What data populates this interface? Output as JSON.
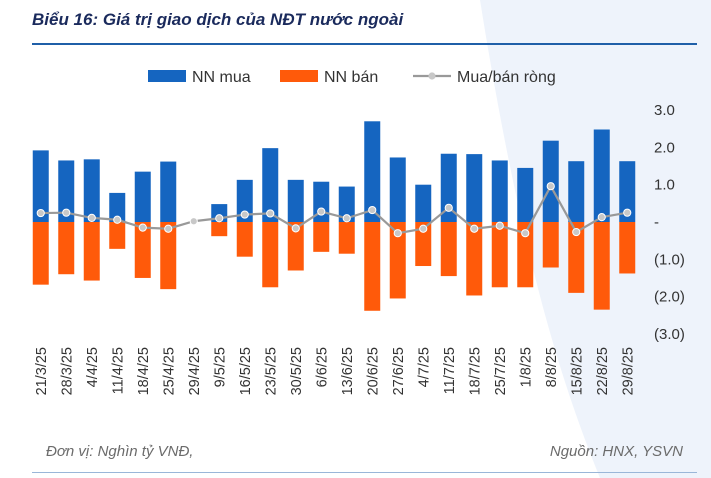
{
  "title": "Biểu 16: Giá trị giao dịch của NĐT nước ngoài",
  "footer": {
    "unit": "Đơn vị: Nghìn tỷ VNĐ,",
    "source": "Nguồn: HNX, YSVN"
  },
  "colors": {
    "buy": "#1565c0",
    "sell": "#ff5a0a",
    "net_line": "#999999",
    "net_marker": "#c8c8c8",
    "title": "#1a2a5c"
  },
  "chart_data": {
    "type": "bar",
    "title": "Biểu 16: Giá trị giao dịch của NĐT nước ngoài",
    "xlabel": "",
    "ylabel": "",
    "ylim": [
      -3.0,
      3.0
    ],
    "yticks": [
      3.0,
      2.0,
      1.0,
      0,
      -1.0,
      -2.0,
      -3.0
    ],
    "ytick_labels": [
      "3.0",
      "2.0",
      "1.0",
      "-",
      "(1.0)",
      "(2.0)",
      "(3.0)"
    ],
    "legend_position": "top",
    "categories": [
      "21/3/25",
      "28/3/25",
      "4/4/25",
      "11/4/25",
      "18/4/25",
      "25/4/25",
      "29/4/25",
      "9/5/25",
      "16/5/25",
      "23/5/25",
      "30/5/25",
      "6/6/25",
      "13/6/25",
      "20/6/25",
      "27/6/25",
      "4/7/25",
      "11/7/25",
      "18/7/25",
      "25/7/25",
      "1/8/25",
      "8/8/25",
      "15/8/25",
      "22/8/25",
      "29/8/25"
    ],
    "series": [
      {
        "name": "NN mua",
        "kind": "bar",
        "values": [
          1.92,
          1.65,
          1.68,
          0.78,
          1.35,
          1.62,
          0.0,
          0.48,
          1.13,
          1.98,
          1.13,
          1.08,
          0.95,
          2.7,
          1.73,
          1.0,
          1.83,
          1.82,
          1.65,
          1.45,
          2.18,
          1.63,
          2.48,
          1.63
        ]
      },
      {
        "name": "NN bán",
        "kind": "bar",
        "values": [
          -1.68,
          -1.4,
          -1.57,
          -0.72,
          -1.5,
          -1.8,
          0.0,
          -0.38,
          -0.93,
          -1.75,
          -1.3,
          -0.8,
          -0.85,
          -2.38,
          -2.05,
          -1.18,
          -1.45,
          -1.97,
          -1.75,
          -1.75,
          -1.22,
          -1.9,
          -2.35,
          -1.38
        ]
      },
      {
        "name": "Mua/bán ròng",
        "kind": "line",
        "values": [
          0.24,
          0.25,
          0.11,
          0.06,
          -0.15,
          -0.18,
          0.02,
          0.1,
          0.2,
          0.23,
          -0.17,
          0.28,
          0.1,
          0.32,
          -0.3,
          -0.18,
          0.38,
          -0.18,
          -0.1,
          -0.3,
          0.96,
          -0.27,
          0.13,
          0.25
        ]
      }
    ]
  }
}
